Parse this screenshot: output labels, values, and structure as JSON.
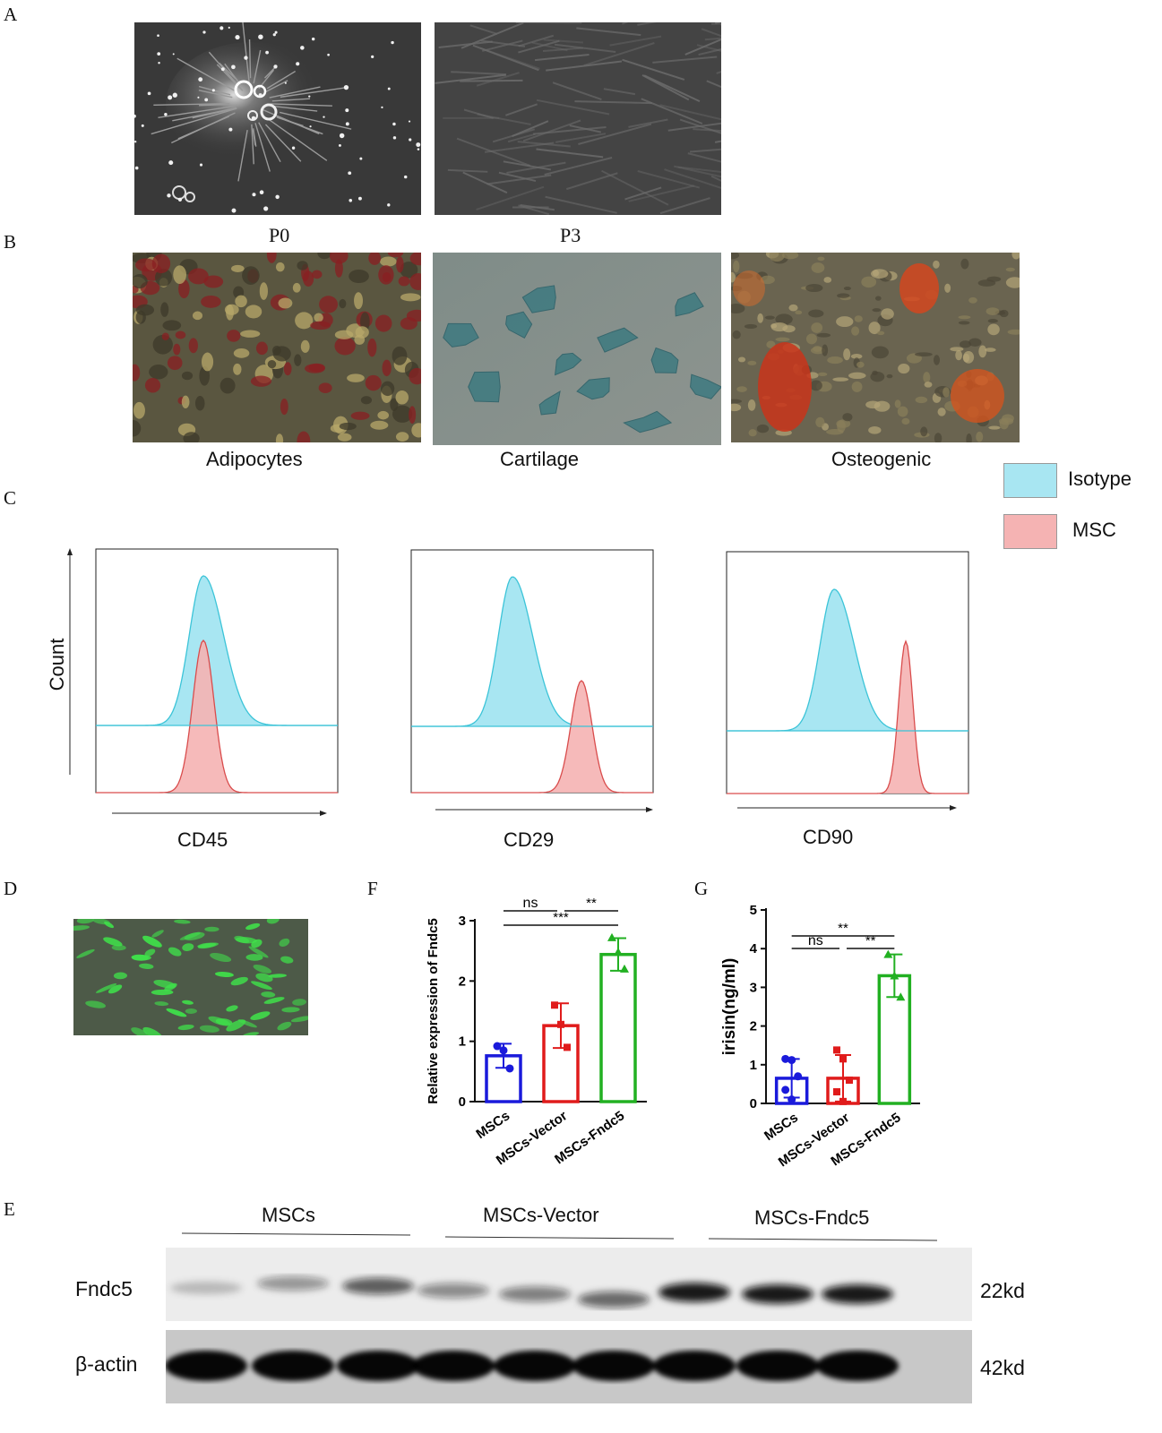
{
  "panels": {
    "A": {
      "letter": "A",
      "captions": [
        "P0",
        "P3"
      ]
    },
    "B": {
      "letter": "B",
      "captions": [
        "Adipocytes",
        "Cartilage",
        "Osteogenic"
      ]
    },
    "C": {
      "letter": "C",
      "legend": [
        {
          "label": "Isotype",
          "color": "#a8e6f2"
        },
        {
          "label": "MSC",
          "color": "#f5b3b3"
        }
      ],
      "ylabel": "Count",
      "markers": [
        "CD45",
        "CD29",
        "CD90"
      ]
    },
    "D": {
      "letter": "D"
    },
    "E": {
      "letter": "E",
      "groups": [
        "MSCs",
        "MSCs-Vector",
        "MSCs-Fndc5"
      ],
      "rows": [
        {
          "name": "Fndc5",
          "size": "22kd"
        },
        {
          "name": "β-actin",
          "size": "42kd"
        }
      ]
    },
    "F": {
      "letter": "F"
    },
    "G": {
      "letter": "G"
    }
  },
  "colors": {
    "isotype": "#a8e6f2",
    "isotype_line": "#3cc4d8",
    "msc": "#f5b3b3",
    "msc_line": "#d94c4c",
    "blue": "#1a1adb",
    "red": "#e01b1b",
    "green": "#22b022"
  },
  "chart_data": [
    {
      "panel": "F",
      "type": "bar",
      "categories": [
        "MSCs",
        "MSCs-Vector",
        "MSCs-Fndc5"
      ],
      "values": [
        0.76,
        1.26,
        2.44
      ],
      "errors": [
        0.2,
        0.37,
        0.27
      ],
      "points": [
        [
          0.92,
          0.85,
          0.55
        ],
        [
          1.6,
          1.28,
          0.9
        ],
        [
          2.72,
          2.48,
          2.2
        ]
      ],
      "ylabel": "Relative expression of Fndc5",
      "ylim": [
        0,
        3
      ],
      "yticks": [
        0,
        1,
        2,
        3
      ],
      "significance": [
        {
          "from": 0,
          "to": 1,
          "label": "ns"
        },
        {
          "from": 1,
          "to": 2,
          "label": "**"
        },
        {
          "from": 0,
          "to": 2,
          "label": "***"
        }
      ]
    },
    {
      "panel": "G",
      "type": "bar",
      "categories": [
        "MSCs",
        "MSCs-Vector",
        "MSCs-Fndc5"
      ],
      "values": [
        0.65,
        0.65,
        3.3
      ],
      "errors": [
        0.5,
        0.6,
        0.55
      ],
      "points": [
        [
          1.15,
          1.12,
          0.7,
          0.35,
          0.1
        ],
        [
          1.38,
          1.15,
          0.6,
          0.3,
          0.05
        ],
        [
          3.85,
          3.3,
          2.75
        ]
      ],
      "ylabel": "irisin(ng/ml)",
      "ylim": [
        0,
        5
      ],
      "yticks": [
        0,
        1,
        2,
        3,
        4,
        5
      ],
      "significance": [
        {
          "from": 0,
          "to": 1,
          "label": "ns"
        },
        {
          "from": 1,
          "to": 2,
          "label": "**"
        },
        {
          "from": 0,
          "to": 2,
          "label": "**"
        }
      ]
    }
  ]
}
